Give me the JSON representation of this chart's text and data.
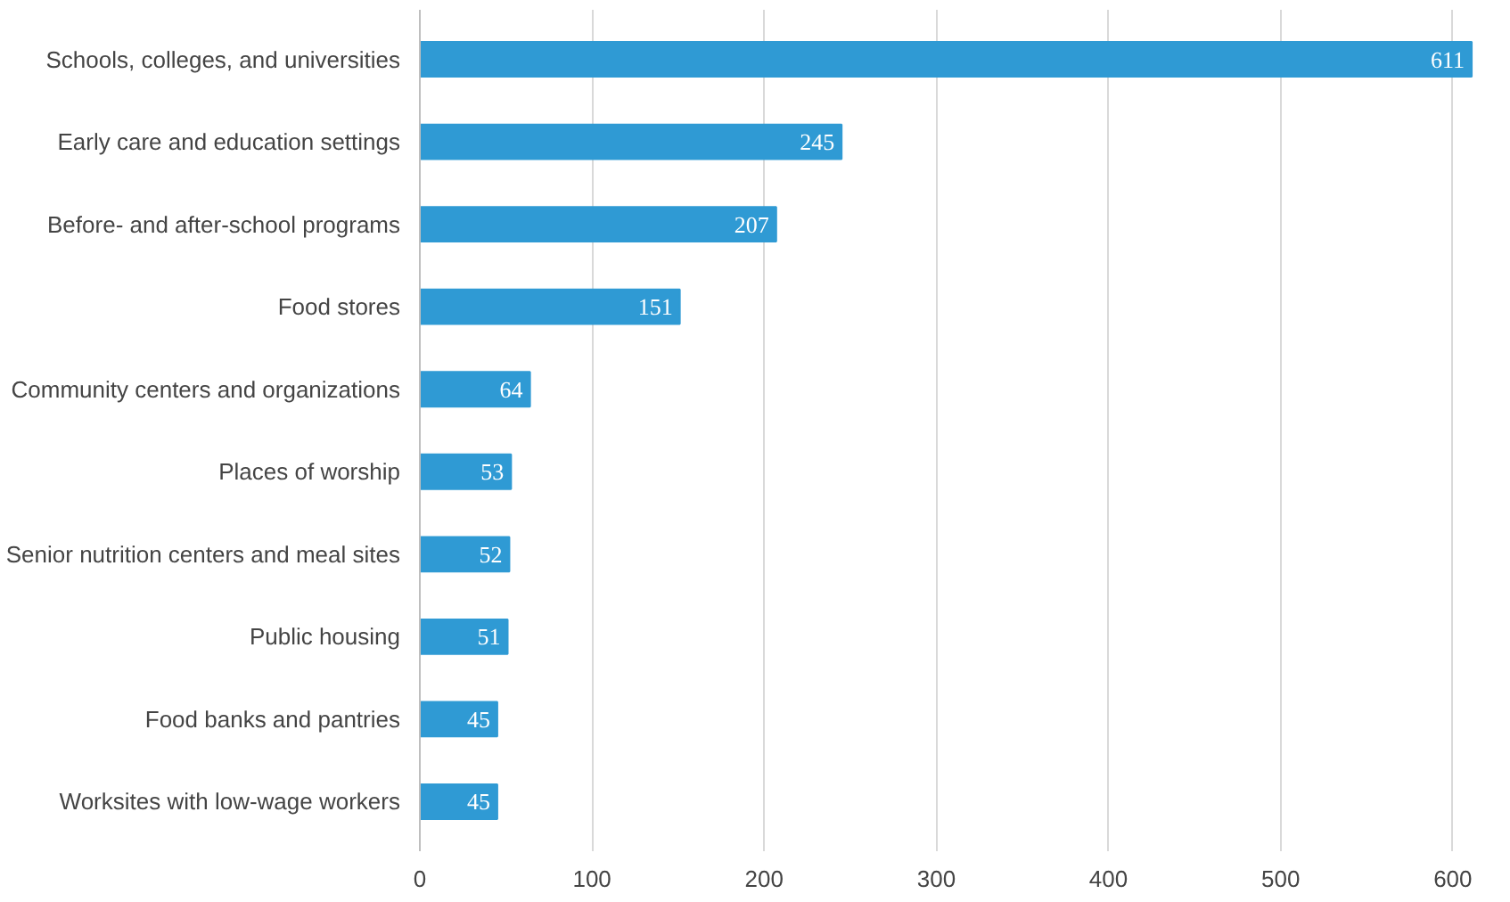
{
  "chart_data": {
    "type": "bar",
    "orientation": "horizontal",
    "categories": [
      "Schools, colleges, and universities",
      "Early care and education settings",
      "Before- and after-school programs",
      "Food stores",
      "Community centers and organizations",
      "Places of worship",
      "Senior nutrition centers and meal sites",
      "Public housing",
      "Food banks and pantries",
      "Worksites with low-wage workers"
    ],
    "values": [
      611,
      245,
      207,
      151,
      64,
      53,
      52,
      51,
      45,
      45
    ],
    "color": "#2f9ad4",
    "xlim": [
      0,
      612
    ],
    "xticks": [
      0,
      100,
      200,
      300,
      400,
      500,
      600
    ],
    "grid": "x",
    "data_labels": true
  }
}
